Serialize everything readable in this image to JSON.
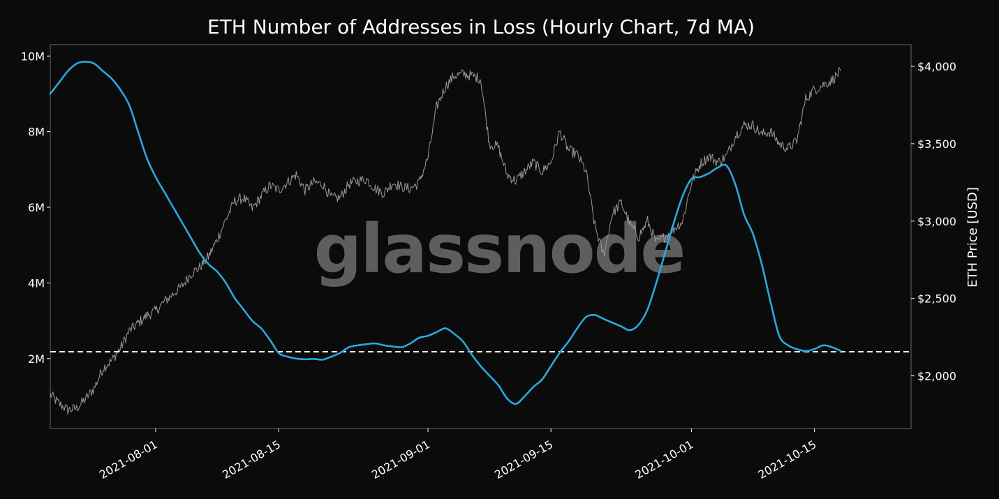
{
  "chart_data": {
    "type": "line",
    "title": "ETH Number of Addresses in Loss (Hourly Chart, 7d MA)",
    "watermark": "glassnode",
    "x_ticks": [
      "2021-08-01",
      "2021-08-15",
      "2021-09-01",
      "2021-09-15",
      "2021-10-01",
      "2021-10-15"
    ],
    "xlim": [
      "2021-07-20",
      "2021-10-26"
    ],
    "y_left": {
      "label": "",
      "ticks": [
        "2M",
        "4M",
        "6M",
        "8M",
        "10M"
      ],
      "tick_values": [
        2000000,
        4000000,
        6000000,
        8000000,
        10000000
      ],
      "lim": [
        0.15,
        10.3
      ],
      "unit_scale": "millions"
    },
    "y_right": {
      "label": "ETH Price [USD]",
      "ticks": [
        "$2,000",
        "$2,500",
        "$3,000",
        "$3,500",
        "$4,000"
      ],
      "tick_values": [
        2000,
        2500,
        3000,
        3500,
        4000
      ],
      "lim": [
        1660,
        4140
      ]
    },
    "reference_line": {
      "value_millions": 2.18,
      "style": "dashed",
      "color": "#ffffff"
    },
    "colors": {
      "addresses_in_loss": "#29a8e0",
      "eth_price": "#9a9a9a",
      "background": "#0b0b0b",
      "frame": "#6a6a6a"
    },
    "series": [
      {
        "axis": "left",
        "unit": "millions",
        "points": [
          [
            "2021-07-20",
            9.0
          ],
          [
            "2021-07-21",
            9.3
          ],
          [
            "2021-07-22",
            9.6
          ],
          [
            "2021-07-23",
            9.8
          ],
          [
            "2021-07-24",
            9.85
          ],
          [
            "2021-07-25",
            9.8
          ],
          [
            "2021-07-26",
            9.6
          ],
          [
            "2021-07-27",
            9.4
          ],
          [
            "2021-07-28",
            9.1
          ],
          [
            "2021-07-29",
            8.7
          ],
          [
            "2021-07-30",
            8.0
          ],
          [
            "2021-07-31",
            7.3
          ],
          [
            "2021-08-01",
            6.8
          ],
          [
            "2021-08-02",
            6.4
          ],
          [
            "2021-08-03",
            6.0
          ],
          [
            "2021-08-04",
            5.6
          ],
          [
            "2021-08-05",
            5.2
          ],
          [
            "2021-08-06",
            4.8
          ],
          [
            "2021-08-07",
            4.5
          ],
          [
            "2021-08-08",
            4.3
          ],
          [
            "2021-08-09",
            4.0
          ],
          [
            "2021-08-10",
            3.6
          ],
          [
            "2021-08-11",
            3.3
          ],
          [
            "2021-08-12",
            3.0
          ],
          [
            "2021-08-13",
            2.8
          ],
          [
            "2021-08-14",
            2.5
          ],
          [
            "2021-08-15",
            2.15
          ],
          [
            "2021-08-16",
            2.05
          ],
          [
            "2021-08-17",
            2.0
          ],
          [
            "2021-08-18",
            1.98
          ],
          [
            "2021-08-19",
            1.99
          ],
          [
            "2021-08-20",
            1.97
          ],
          [
            "2021-08-21",
            2.05
          ],
          [
            "2021-08-22",
            2.15
          ],
          [
            "2021-08-23",
            2.3
          ],
          [
            "2021-08-24",
            2.35
          ],
          [
            "2021-08-25",
            2.38
          ],
          [
            "2021-08-26",
            2.4
          ],
          [
            "2021-08-27",
            2.35
          ],
          [
            "2021-08-28",
            2.32
          ],
          [
            "2021-08-29",
            2.3
          ],
          [
            "2021-08-30",
            2.4
          ],
          [
            "2021-08-31",
            2.55
          ],
          [
            "2021-09-01",
            2.6
          ],
          [
            "2021-09-02",
            2.7
          ],
          [
            "2021-09-03",
            2.8
          ],
          [
            "2021-09-04",
            2.65
          ],
          [
            "2021-09-05",
            2.45
          ],
          [
            "2021-09-06",
            2.1
          ],
          [
            "2021-09-07",
            1.8
          ],
          [
            "2021-09-08",
            1.55
          ],
          [
            "2021-09-09",
            1.3
          ],
          [
            "2021-09-10",
            0.95
          ],
          [
            "2021-09-11",
            0.8
          ],
          [
            "2021-09-12",
            1.0
          ],
          [
            "2021-09-13",
            1.25
          ],
          [
            "2021-09-14",
            1.45
          ],
          [
            "2021-09-15",
            1.8
          ],
          [
            "2021-09-16",
            2.15
          ],
          [
            "2021-09-17",
            2.45
          ],
          [
            "2021-09-18",
            2.8
          ],
          [
            "2021-09-19",
            3.1
          ],
          [
            "2021-09-20",
            3.15
          ],
          [
            "2021-09-21",
            3.05
          ],
          [
            "2021-09-22",
            2.95
          ],
          [
            "2021-09-23",
            2.85
          ],
          [
            "2021-09-24",
            2.75
          ],
          [
            "2021-09-25",
            2.9
          ],
          [
            "2021-09-26",
            3.3
          ],
          [
            "2021-09-27",
            4.0
          ],
          [
            "2021-09-28",
            4.8
          ],
          [
            "2021-09-29",
            5.6
          ],
          [
            "2021-09-30",
            6.3
          ],
          [
            "2021-10-01",
            6.75
          ],
          [
            "2021-10-02",
            6.8
          ],
          [
            "2021-10-03",
            6.9
          ],
          [
            "2021-10-04",
            7.05
          ],
          [
            "2021-10-05",
            7.1
          ],
          [
            "2021-10-06",
            6.6
          ],
          [
            "2021-10-07",
            5.8
          ],
          [
            "2021-10-08",
            5.3
          ],
          [
            "2021-10-09",
            4.5
          ],
          [
            "2021-10-10",
            3.5
          ],
          [
            "2021-10-11",
            2.6
          ],
          [
            "2021-10-12",
            2.35
          ],
          [
            "2021-10-13",
            2.25
          ],
          [
            "2021-10-14",
            2.2
          ],
          [
            "2021-10-15",
            2.25
          ],
          [
            "2021-10-16",
            2.35
          ],
          [
            "2021-10-17",
            2.3
          ],
          [
            "2021-10-18",
            2.2
          ]
        ]
      },
      {
        "name": "ETH Price",
        "axis": "right",
        "unit": "USD",
        "points": [
          [
            "2021-07-20",
            1880
          ],
          [
            "2021-07-21",
            1820
          ],
          [
            "2021-07-22",
            1780
          ],
          [
            "2021-07-23",
            1790
          ],
          [
            "2021-07-24",
            1850
          ],
          [
            "2021-07-25",
            1920
          ],
          [
            "2021-07-26",
            2050
          ],
          [
            "2021-07-27",
            2100
          ],
          [
            "2021-07-28",
            2180
          ],
          [
            "2021-07-29",
            2290
          ],
          [
            "2021-07-30",
            2340
          ],
          [
            "2021-07-31",
            2390
          ],
          [
            "2021-08-01",
            2420
          ],
          [
            "2021-08-02",
            2480
          ],
          [
            "2021-08-03",
            2530
          ],
          [
            "2021-08-04",
            2580
          ],
          [
            "2021-08-05",
            2660
          ],
          [
            "2021-08-06",
            2700
          ],
          [
            "2021-08-07",
            2770
          ],
          [
            "2021-08-08",
            2880
          ],
          [
            "2021-08-09",
            3010
          ],
          [
            "2021-08-10",
            3130
          ],
          [
            "2021-08-11",
            3150
          ],
          [
            "2021-08-12",
            3080
          ],
          [
            "2021-08-13",
            3160
          ],
          [
            "2021-08-14",
            3230
          ],
          [
            "2021-08-15",
            3200
          ],
          [
            "2021-08-16",
            3250
          ],
          [
            "2021-08-17",
            3300
          ],
          [
            "2021-08-18",
            3200
          ],
          [
            "2021-08-19",
            3250
          ],
          [
            "2021-08-20",
            3240
          ],
          [
            "2021-08-21",
            3150
          ],
          [
            "2021-08-22",
            3150
          ],
          [
            "2021-08-23",
            3240
          ],
          [
            "2021-08-24",
            3260
          ],
          [
            "2021-08-25",
            3270
          ],
          [
            "2021-08-26",
            3210
          ],
          [
            "2021-08-27",
            3180
          ],
          [
            "2021-08-28",
            3250
          ],
          [
            "2021-08-29",
            3220
          ],
          [
            "2021-08-30",
            3210
          ],
          [
            "2021-08-31",
            3250
          ],
          [
            "2021-09-01",
            3410
          ],
          [
            "2021-09-02",
            3740
          ],
          [
            "2021-09-03",
            3870
          ],
          [
            "2021-09-04",
            3940
          ],
          [
            "2021-09-05",
            3950
          ],
          [
            "2021-09-06",
            3940
          ],
          [
            "2021-09-07",
            3920
          ],
          [
            "2021-09-08",
            3500
          ],
          [
            "2021-09-09",
            3480
          ],
          [
            "2021-09-10",
            3300
          ],
          [
            "2021-09-11",
            3260
          ],
          [
            "2021-09-12",
            3320
          ],
          [
            "2021-09-13",
            3380
          ],
          [
            "2021-09-14",
            3320
          ],
          [
            "2021-09-15",
            3380
          ],
          [
            "2021-09-16",
            3580
          ],
          [
            "2021-09-17",
            3460
          ],
          [
            "2021-09-18",
            3430
          ],
          [
            "2021-09-19",
            3320
          ],
          [
            "2021-09-20",
            2970
          ],
          [
            "2021-09-21",
            2780
          ],
          [
            "2021-09-22",
            3050
          ],
          [
            "2021-09-23",
            3120
          ],
          [
            "2021-09-24",
            2980
          ],
          [
            "2021-09-25",
            2900
          ],
          [
            "2021-09-26",
            3000
          ],
          [
            "2021-09-27",
            2860
          ],
          [
            "2021-09-28",
            2900
          ],
          [
            "2021-09-29",
            2950
          ],
          [
            "2021-09-30",
            3000
          ],
          [
            "2021-10-01",
            3250
          ],
          [
            "2021-10-02",
            3370
          ],
          [
            "2021-10-03",
            3420
          ],
          [
            "2021-10-04",
            3380
          ],
          [
            "2021-10-05",
            3420
          ],
          [
            "2021-10-06",
            3550
          ],
          [
            "2021-10-07",
            3620
          ],
          [
            "2021-10-08",
            3620
          ],
          [
            "2021-10-09",
            3560
          ],
          [
            "2021-10-10",
            3580
          ],
          [
            "2021-10-11",
            3500
          ],
          [
            "2021-10-12",
            3470
          ],
          [
            "2021-10-13",
            3520
          ],
          [
            "2021-10-14",
            3790
          ],
          [
            "2021-10-15",
            3850
          ],
          [
            "2021-10-16",
            3880
          ],
          [
            "2021-10-17",
            3910
          ],
          [
            "2021-10-18",
            3970
          ]
        ]
      }
    ]
  }
}
